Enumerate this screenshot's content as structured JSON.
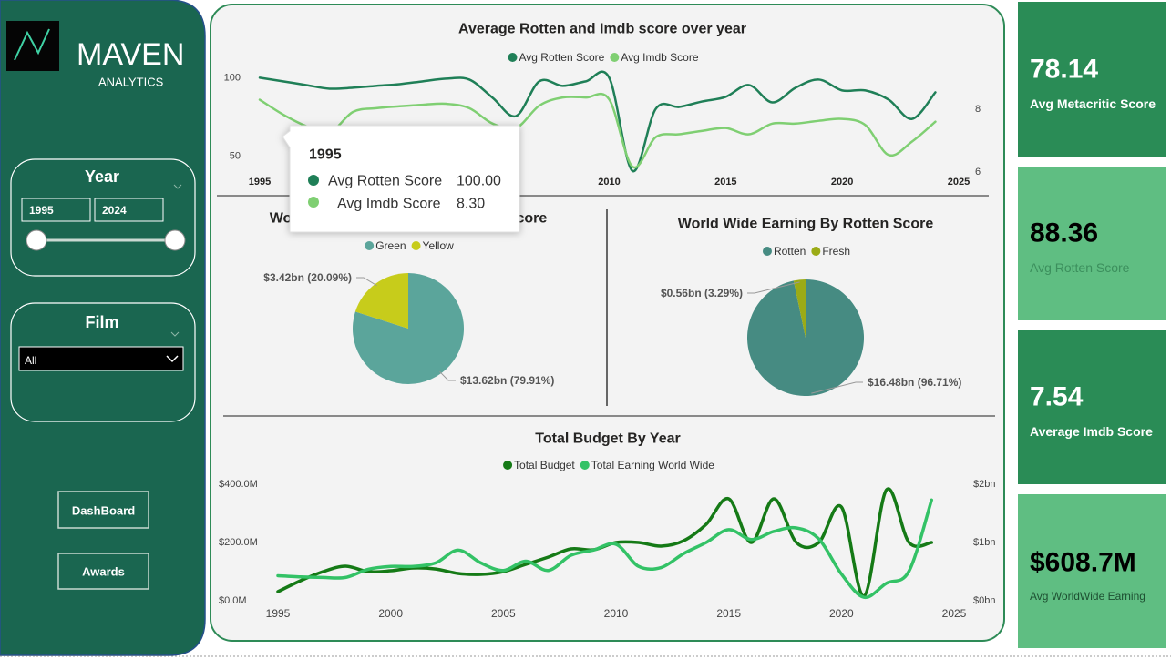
{
  "sidebar": {
    "brand": "MAVEN",
    "brand_sub": "ANALYTICS",
    "year_slicer": {
      "title": "Year",
      "from": "1995",
      "to": "2024"
    },
    "film_slicer": {
      "title": "Film",
      "selected": "All"
    },
    "buttons": [
      "DashBoard",
      "Awards"
    ]
  },
  "tooltip": {
    "title": "1995",
    "rows": [
      {
        "label": "Avg Rotten Score",
        "value": "100.00"
      },
      {
        "label": "Avg Imdb Score",
        "value": "8.30"
      }
    ]
  },
  "kpis": [
    {
      "value": "78.14",
      "name": "Avg Metacritic Score"
    },
    {
      "value": "88.36",
      "name": "Avg Rotten Score"
    },
    {
      "value": "7.54",
      "name": "Average Imdb Score"
    },
    {
      "value": "$608.7M",
      "name": "Avg WorldWide Earning"
    }
  ],
  "chart_data": [
    {
      "type": "line",
      "title": "Average Rotten and Imdb score over year",
      "x": [
        1995,
        1996,
        1997,
        1998,
        1999,
        2000,
        2001,
        2002,
        2003,
        2004,
        2005,
        2006,
        2007,
        2008,
        2009,
        2010,
        2011,
        2012,
        2013,
        2014,
        2015,
        2016,
        2017,
        2018,
        2019,
        2020,
        2021,
        2022,
        2023,
        2024
      ],
      "xlim": [
        1995,
        2025
      ],
      "xticks": [
        1995,
        2000,
        2005,
        2010,
        2015,
        2020,
        2025
      ],
      "ylim": [
        40,
        106
      ],
      "yticks": [
        50,
        100
      ],
      "y2lim": [
        6,
        9.3
      ],
      "y2ticks": [
        6,
        8
      ],
      "series": [
        {
          "name": "Avg Rotten Score",
          "color": "#1f7f57",
          "values": [
            100,
            97.7,
            95.3,
            93,
            93.6,
            94.8,
            95.9,
            97.7,
            99.4,
            98.8,
            87.2,
            75.6,
            97.7,
            94.8,
            97.7,
            100,
            40.7,
            80.2,
            81.4,
            84.9,
            87.8,
            95.3,
            84.3,
            93.6,
            98.8,
            91.9,
            91.9,
            86,
            73.8,
            90.7
          ]
        },
        {
          "name": "Avg Imdb Score",
          "color": "#7fcf72",
          "axis": "y2",
          "values": [
            8.3,
            7.83,
            7.46,
            7.26,
            7.91,
            8.03,
            8.09,
            8.14,
            8.17,
            8.03,
            7.54,
            7.4,
            8.11,
            8.37,
            8.37,
            8.31,
            6.17,
            7.11,
            7.2,
            7.31,
            7.4,
            7.2,
            7.54,
            7.54,
            7.63,
            7.69,
            7.49,
            6.54,
            6.97,
            7.6
          ]
        }
      ]
    },
    {
      "type": "pie",
      "title": "World Wide Earning By Metacritic Score",
      "categories": [
        "Green",
        "Yellow"
      ],
      "values": [
        13.62,
        3.42
      ],
      "value_labels": [
        "$13.62bn (79.91%)",
        "$3.42bn (20.09%)"
      ],
      "colors": [
        "#5ba59b",
        "#c7cc1b"
      ]
    },
    {
      "type": "pie",
      "title": "World Wide Earning By Rotten Score",
      "categories": [
        "Rotten",
        "Fresh"
      ],
      "values": [
        16.48,
        0.56
      ],
      "value_labels": [
        "$16.48bn (96.71%)",
        "$0.56bn (3.29%)"
      ],
      "colors": [
        "#468b82",
        "#9bab16"
      ]
    },
    {
      "type": "line",
      "title": "Total Budget By Year",
      "x": [
        1995,
        1996,
        1997,
        1998,
        1999,
        2000,
        2001,
        2002,
        2003,
        2004,
        2005,
        2006,
        2007,
        2008,
        2009,
        2010,
        2011,
        2012,
        2013,
        2014,
        2015,
        2016,
        2017,
        2018,
        2019,
        2020,
        2021,
        2022,
        2023,
        2024
      ],
      "xlim": [
        1995,
        2025
      ],
      "xticks": [
        1995,
        2000,
        2005,
        2010,
        2015,
        2020,
        2025
      ],
      "ylim": [
        0,
        400000000
      ],
      "yticks": [
        {
          "value": 0,
          "label": "$0.0M"
        },
        {
          "value": 200000000,
          "label": "$200.0M"
        },
        {
          "value": 400000000,
          "label": "$400.0M"
        }
      ],
      "y2lim": [
        0,
        2000000000
      ],
      "y2ticks": [
        {
          "value": 0,
          "label": "$0bn"
        },
        {
          "value": 1000000000,
          "label": "$1bn"
        },
        {
          "value": 2000000000,
          "label": "$2bn"
        }
      ],
      "series": [
        {
          "name": "Total Budget",
          "color": "#157a16",
          "values": [
            31300000,
            68800000,
            100000000,
            118800000,
            100000000,
            103000000,
            112500000,
            109000000,
            93800000,
            90600000,
            100000000,
            125000000,
            150000000,
            178000000,
            175000000,
            200000000,
            200000000,
            187500000,
            206000000,
            262500000,
            350000000,
            200000000,
            350000000,
            200000000,
            200000000,
            322000000,
            15600000,
            381000000,
            200000000,
            200000000
          ]
        },
        {
          "name": "Total Earning World Wide",
          "color": "#33c266",
          "axis": "y2",
          "values": [
            430000000,
            410000000,
            400000000,
            400000000,
            540000000,
            590000000,
            590000000,
            650000000,
            870000000,
            650000000,
            520000000,
            680000000,
            520000000,
            780000000,
            870000000,
            970000000,
            590000000,
            570000000,
            810000000,
            1000000000,
            1220000000,
            1050000000,
            1190000000,
            1250000000,
            1060000000,
            460000000,
            60000000,
            300000000,
            510000000,
            1730000000
          ]
        }
      ]
    }
  ]
}
